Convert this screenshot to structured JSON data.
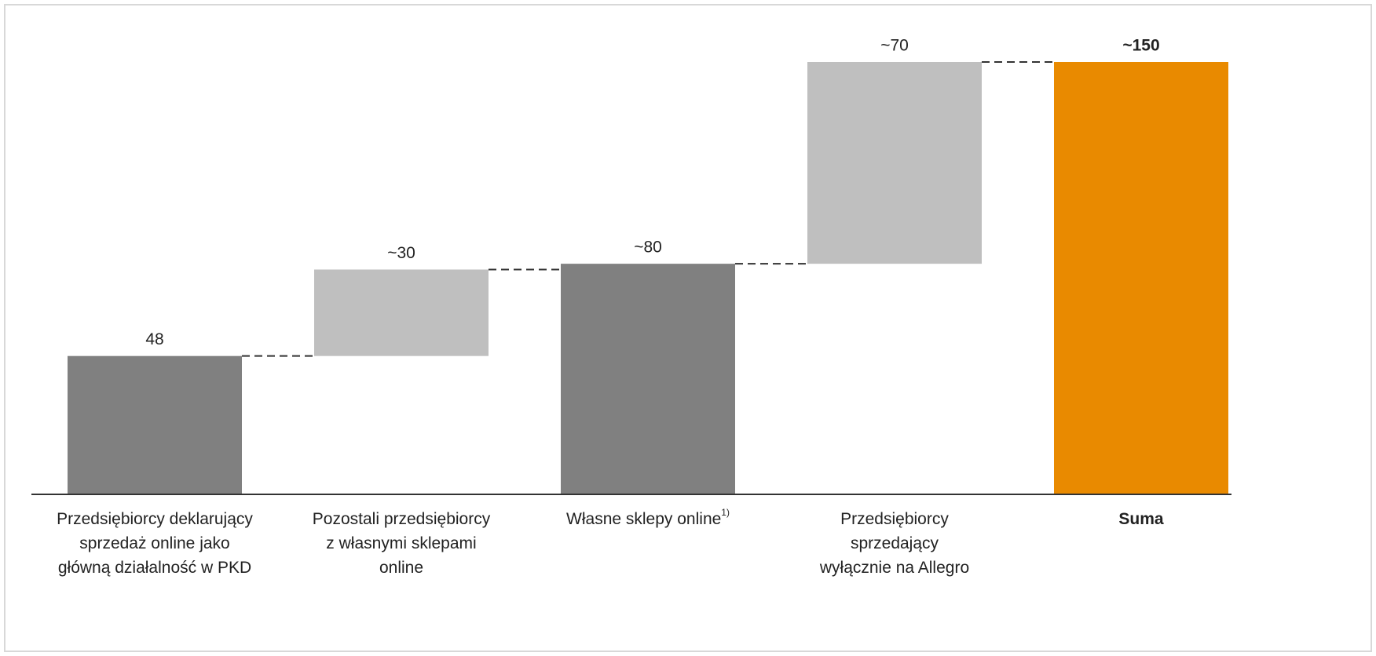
{
  "chart_data": {
    "type": "waterfall",
    "categories": [
      [
        "Przedsiębiorcy deklarujący",
        "sprzedaż online jako",
        "główną działalność w PKD"
      ],
      [
        "Pozostali przedsiębiorcy",
        "z własnymi sklepami",
        "online"
      ],
      [
        "Własne sklepy online"
      ],
      [
        "Przedsiębiorcy",
        "sprzedający",
        "wyłącznie na Allegro"
      ],
      [
        "Suma"
      ]
    ],
    "category_notes": [
      null,
      null,
      "1)",
      null,
      null
    ],
    "measure": [
      "absolute",
      "relative",
      "total",
      "relative",
      "total"
    ],
    "values": [
      48,
      30,
      80,
      70,
      150
    ],
    "value_labels": [
      "48",
      "~30",
      "~80",
      "~70",
      "~150"
    ],
    "colors": [
      "#808080",
      "#bfbfbf",
      "#808080",
      "#bfbfbf",
      "#e98a00"
    ],
    "bold": [
      false,
      false,
      false,
      false,
      true
    ],
    "ylim": [
      0,
      150
    ]
  }
}
